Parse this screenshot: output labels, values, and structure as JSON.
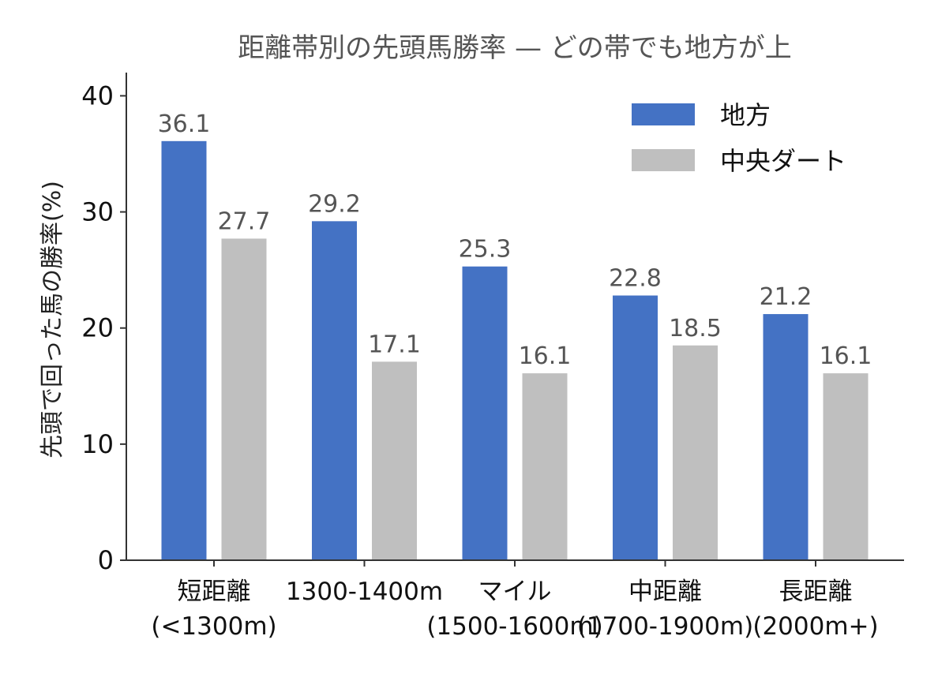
{
  "chart_data": {
    "type": "bar",
    "title": "距離帯別の先頭馬勝率 — どの帯でも地方が上",
    "xlabel": "",
    "ylabel": "先頭で回った馬の勝率(%)",
    "ylim": [
      0,
      42
    ],
    "yticks": [
      0,
      10,
      20,
      30,
      40
    ],
    "grid": false,
    "legend_position": "top-right",
    "categories": [
      [
        "短距離",
        "(<1300m)"
      ],
      [
        "1300-1400m"
      ],
      [
        "マイル",
        "(1500-1600m)"
      ],
      [
        "中距離",
        "(1700-1900m)"
      ],
      [
        "長距離",
        "(2000m+)"
      ]
    ],
    "series": [
      {
        "name": "地方",
        "color": "#4472c4",
        "values": [
          36.1,
          29.2,
          25.3,
          22.8,
          21.2
        ]
      },
      {
        "name": "中央ダート",
        "color": "#bfbfbf",
        "values": [
          27.7,
          17.1,
          16.1,
          18.5,
          16.1
        ]
      }
    ]
  }
}
